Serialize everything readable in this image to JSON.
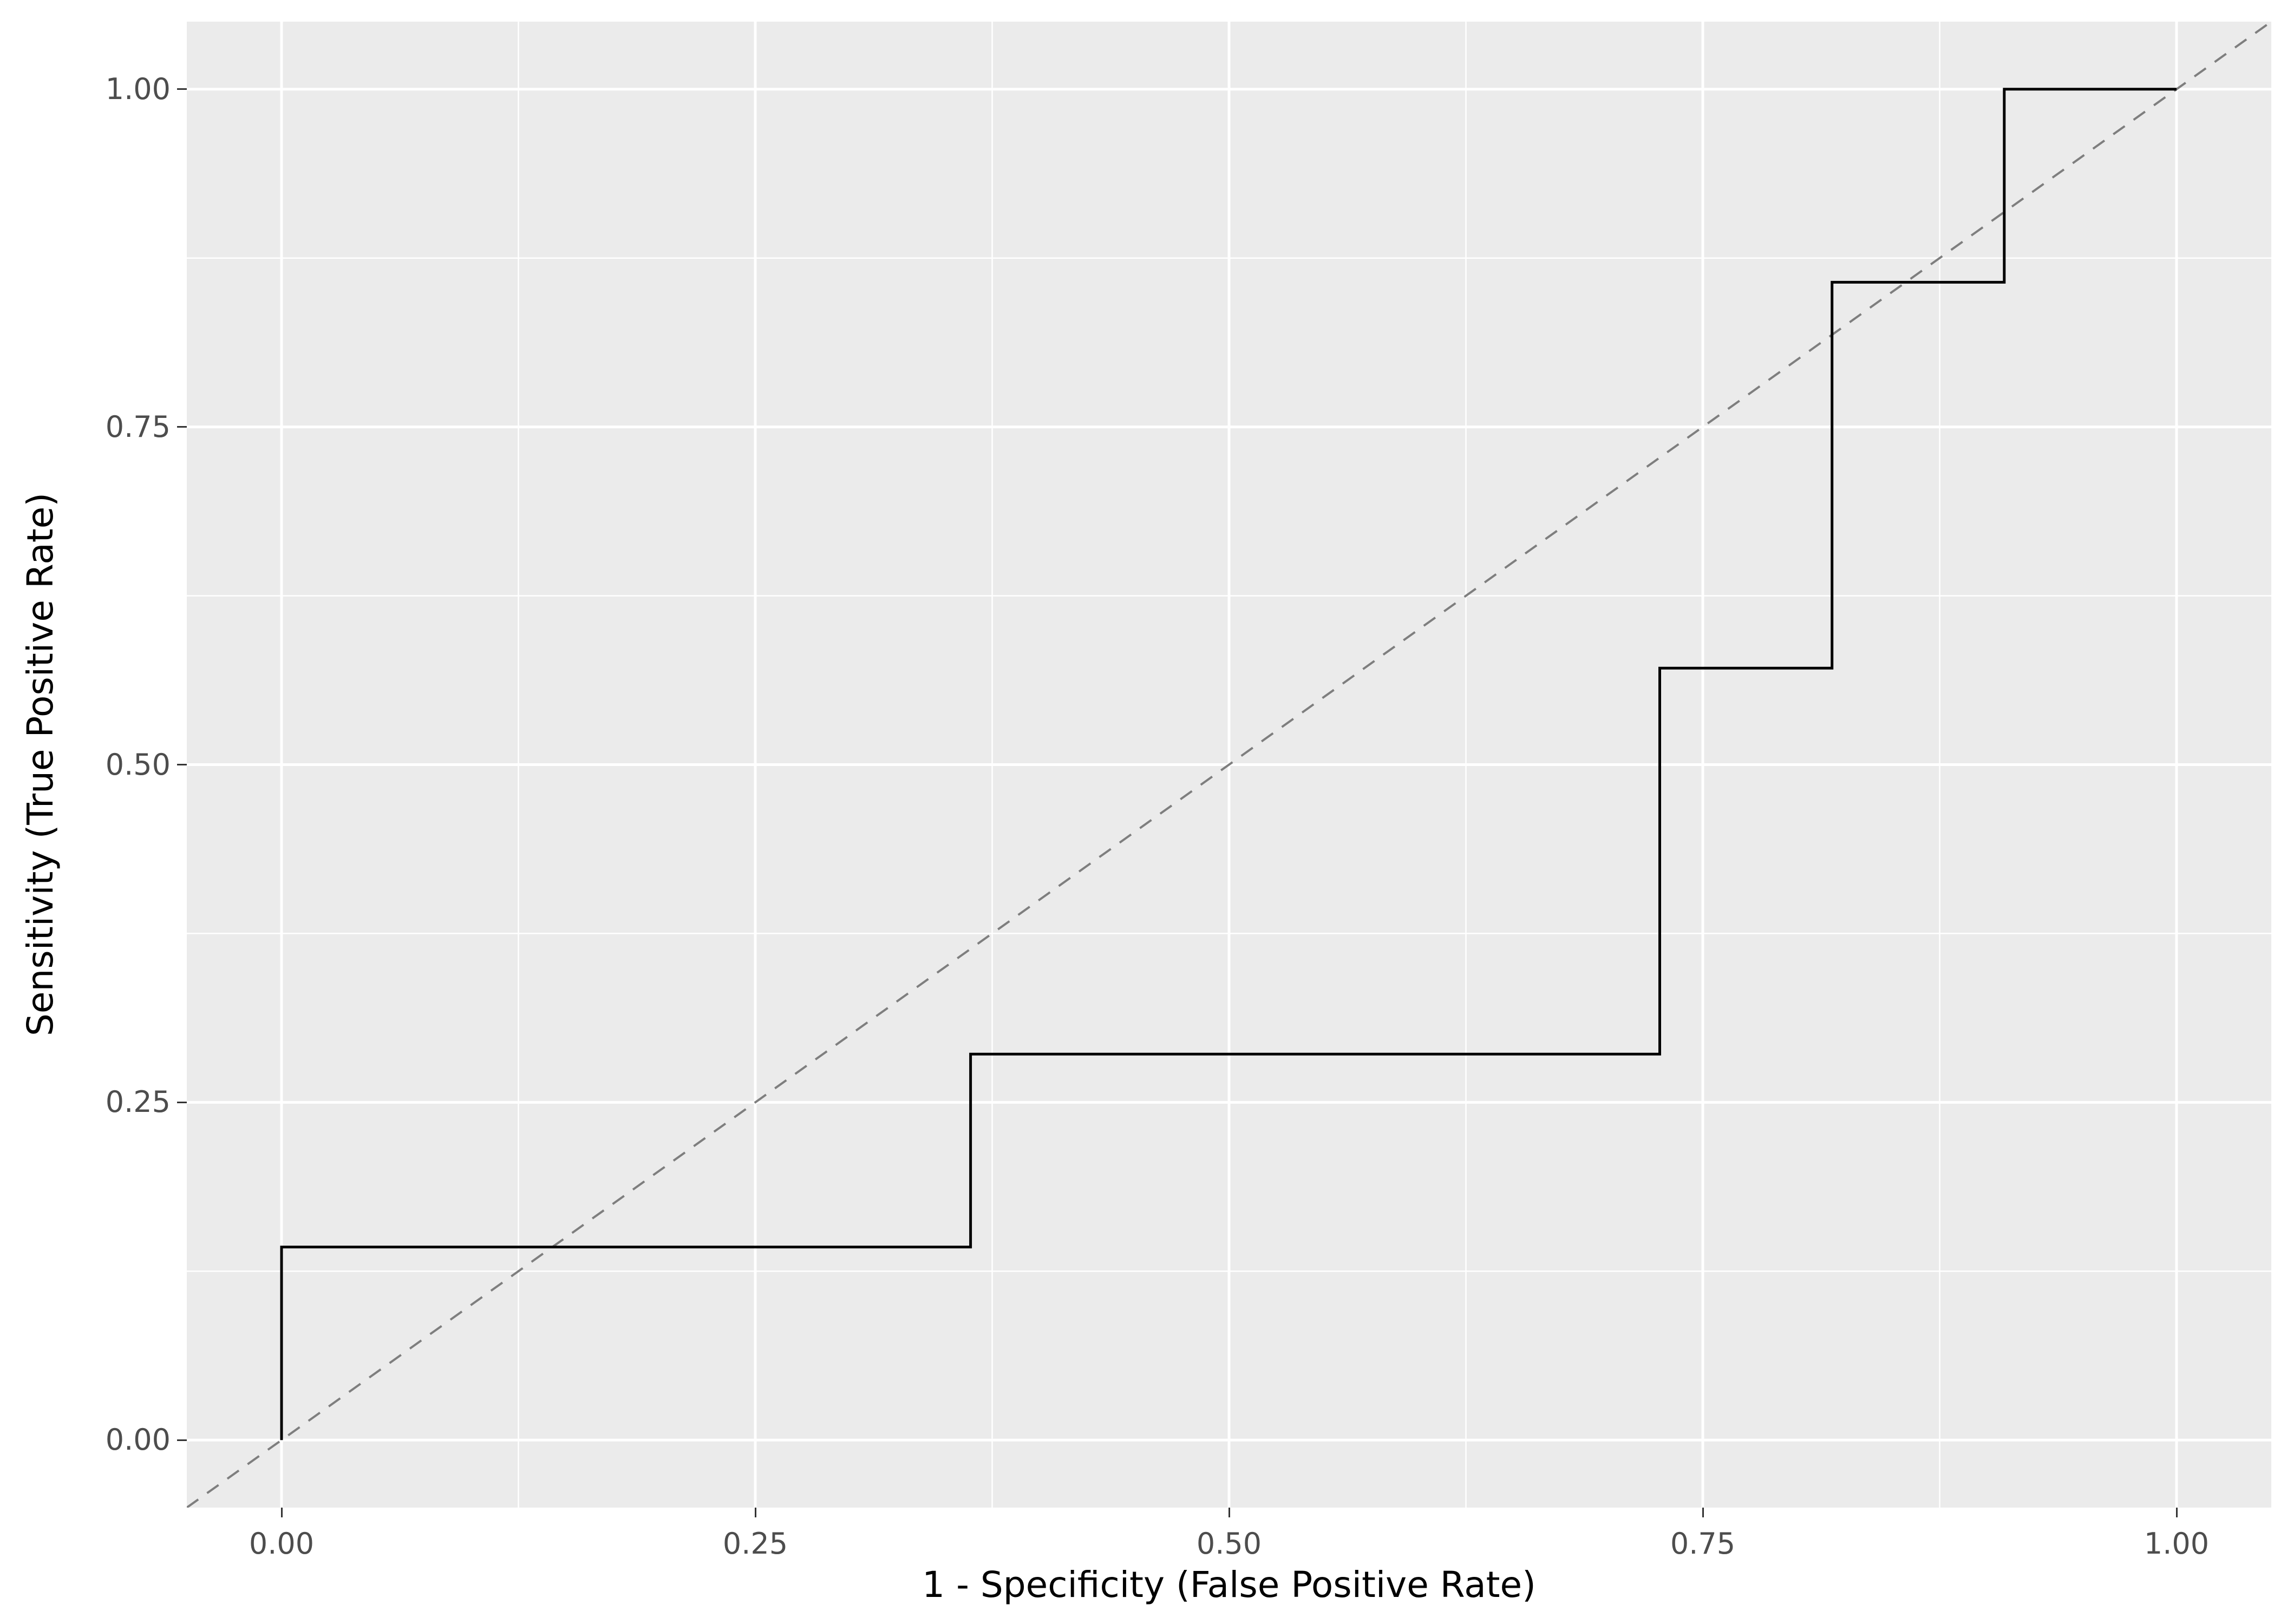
{
  "colors": {
    "page_bg": "#FFFFFF",
    "panel_bg": "#EBEBEB",
    "grid": "#FFFFFF",
    "tick_mark": "#333333",
    "tick_label": "#4D4D4D",
    "axis_title": "#000000"
  },
  "chart_data": {
    "type": "line",
    "subtype": "roc-curve-step",
    "title": "",
    "xlabel": "1 - Specificity (False Positive Rate)",
    "ylabel": "Sensitivity (True Positive Rate)",
    "xlim": [
      -0.05,
      1.05
    ],
    "ylim": [
      -0.05,
      1.05
    ],
    "grid": "on",
    "legend": "none",
    "panel_background": "#EBEBEB",
    "x_ticks": [
      {
        "label": "0.00",
        "value": 0
      },
      {
        "label": "0.25",
        "value": 0.25
      },
      {
        "label": "0.50",
        "value": 0.5
      },
      {
        "label": "0.75",
        "value": 0.75
      },
      {
        "label": "1.00",
        "value": 1
      }
    ],
    "y_ticks": [
      {
        "label": "0.00",
        "value": 0
      },
      {
        "label": "0.25",
        "value": 0.25
      },
      {
        "label": "0.50",
        "value": 0.5
      },
      {
        "label": "0.75",
        "value": 0.75
      },
      {
        "label": "1.00",
        "value": 1
      }
    ],
    "minor_ticks": [
      0.125,
      0.375,
      0.625,
      0.875
    ],
    "series": [
      {
        "name": "chance-diagonal",
        "style": "dashed",
        "color": "#7E7E7E",
        "width": 4,
        "dash": "26 20",
        "points": [
          [
            -0.05,
            -0.05
          ],
          [
            1.05,
            1.05
          ]
        ]
      },
      {
        "name": "roc-step-curve",
        "style": "step",
        "color": "#000000",
        "width": 5,
        "dash": null,
        "points": [
          [
            0,
            0
          ],
          [
            0,
            0.1429
          ],
          [
            0.3636,
            0.1429
          ],
          [
            0.3636,
            0.2857
          ],
          [
            0.7273,
            0.2857
          ],
          [
            0.7273,
            0.5714
          ],
          [
            0.8182,
            0.5714
          ],
          [
            0.8182,
            0.8571
          ],
          [
            0.9091,
            0.8571
          ],
          [
            0.9091,
            1
          ],
          [
            1,
            1
          ]
        ]
      }
    ]
  }
}
